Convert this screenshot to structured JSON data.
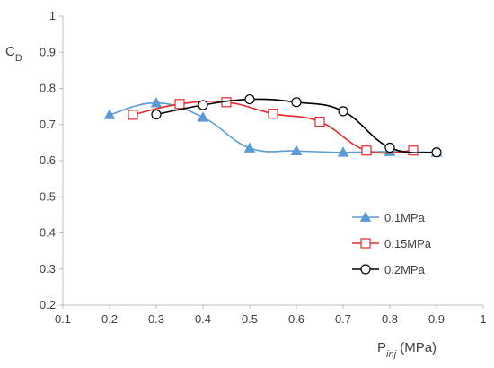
{
  "chart_data": {
    "type": "line",
    "title": "",
    "xlabel": {
      "main": "P",
      "sub": "inj",
      "unit": " (MPa)"
    },
    "ylabel": {
      "main": "C",
      "sub": "D"
    },
    "xlim": [
      0.1,
      1.0
    ],
    "ylim": [
      0.2,
      1.0
    ],
    "xticks": [
      "0.1",
      "0.2",
      "0.3",
      "0.4",
      "0.5",
      "0.6",
      "0.7",
      "0.8",
      "0.9",
      "1"
    ],
    "yticks": [
      "0.2",
      "0.3",
      "0.4",
      "0.5",
      "0.6",
      "0.7",
      "0.8",
      "0.9",
      "1"
    ],
    "grid": false,
    "legend_position": "right",
    "series": [
      {
        "name": "0.1MPa",
        "color": "#5b9bd5",
        "marker": "triangle-filled",
        "x": [
          0.2,
          0.3,
          0.4,
          0.5,
          0.6,
          0.7,
          0.8,
          0.9
        ],
        "y": [
          0.727,
          0.76,
          0.72,
          0.635,
          0.627,
          0.623,
          0.625,
          0.623
        ]
      },
      {
        "name": "0.15MPa",
        "color": "#e8282a",
        "marker": "square-open",
        "x": [
          0.25,
          0.35,
          0.45,
          0.55,
          0.65,
          0.75,
          0.85
        ],
        "y": [
          0.727,
          0.757,
          0.762,
          0.73,
          0.708,
          0.628,
          0.628
        ]
      },
      {
        "name": "0.2MPa",
        "color": "#000000",
        "marker": "circle-open",
        "x": [
          0.3,
          0.4,
          0.5,
          0.6,
          0.7,
          0.8,
          0.9
        ],
        "y": [
          0.728,
          0.754,
          0.77,
          0.762,
          0.737,
          0.636,
          0.623
        ]
      }
    ]
  }
}
